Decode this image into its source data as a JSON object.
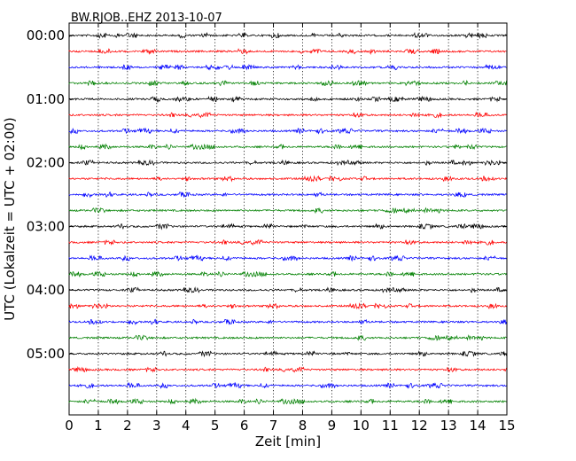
{
  "chart_data": {
    "type": "line",
    "title": "BW.RJOB..EHZ 2013-10-07",
    "xlabel": "Zeit  [min]",
    "ylabel": "UTC (Lokalzeit = UTC + 02:00)",
    "xlim": [
      0,
      15
    ],
    "xticks": [
      "0",
      "1",
      "2",
      "3",
      "4",
      "5",
      "6",
      "7",
      "8",
      "9",
      "10",
      "11",
      "12",
      "13",
      "14",
      "15"
    ],
    "row_labels": [
      {
        "row": 0,
        "label": "00:00"
      },
      {
        "row": 4,
        "label": "01:00"
      },
      {
        "row": 8,
        "label": "02:00"
      },
      {
        "row": 12,
        "label": "03:00"
      },
      {
        "row": 16,
        "label": "04:00"
      },
      {
        "row": 20,
        "label": "05:00"
      }
    ],
    "row_count": 24,
    "minutes_per_row": 15,
    "trace_colors": [
      "#000000",
      "#ff0000",
      "#0000ff",
      "#008000"
    ],
    "grid": "vertical dotted lines at each minute",
    "legend": "none"
  }
}
